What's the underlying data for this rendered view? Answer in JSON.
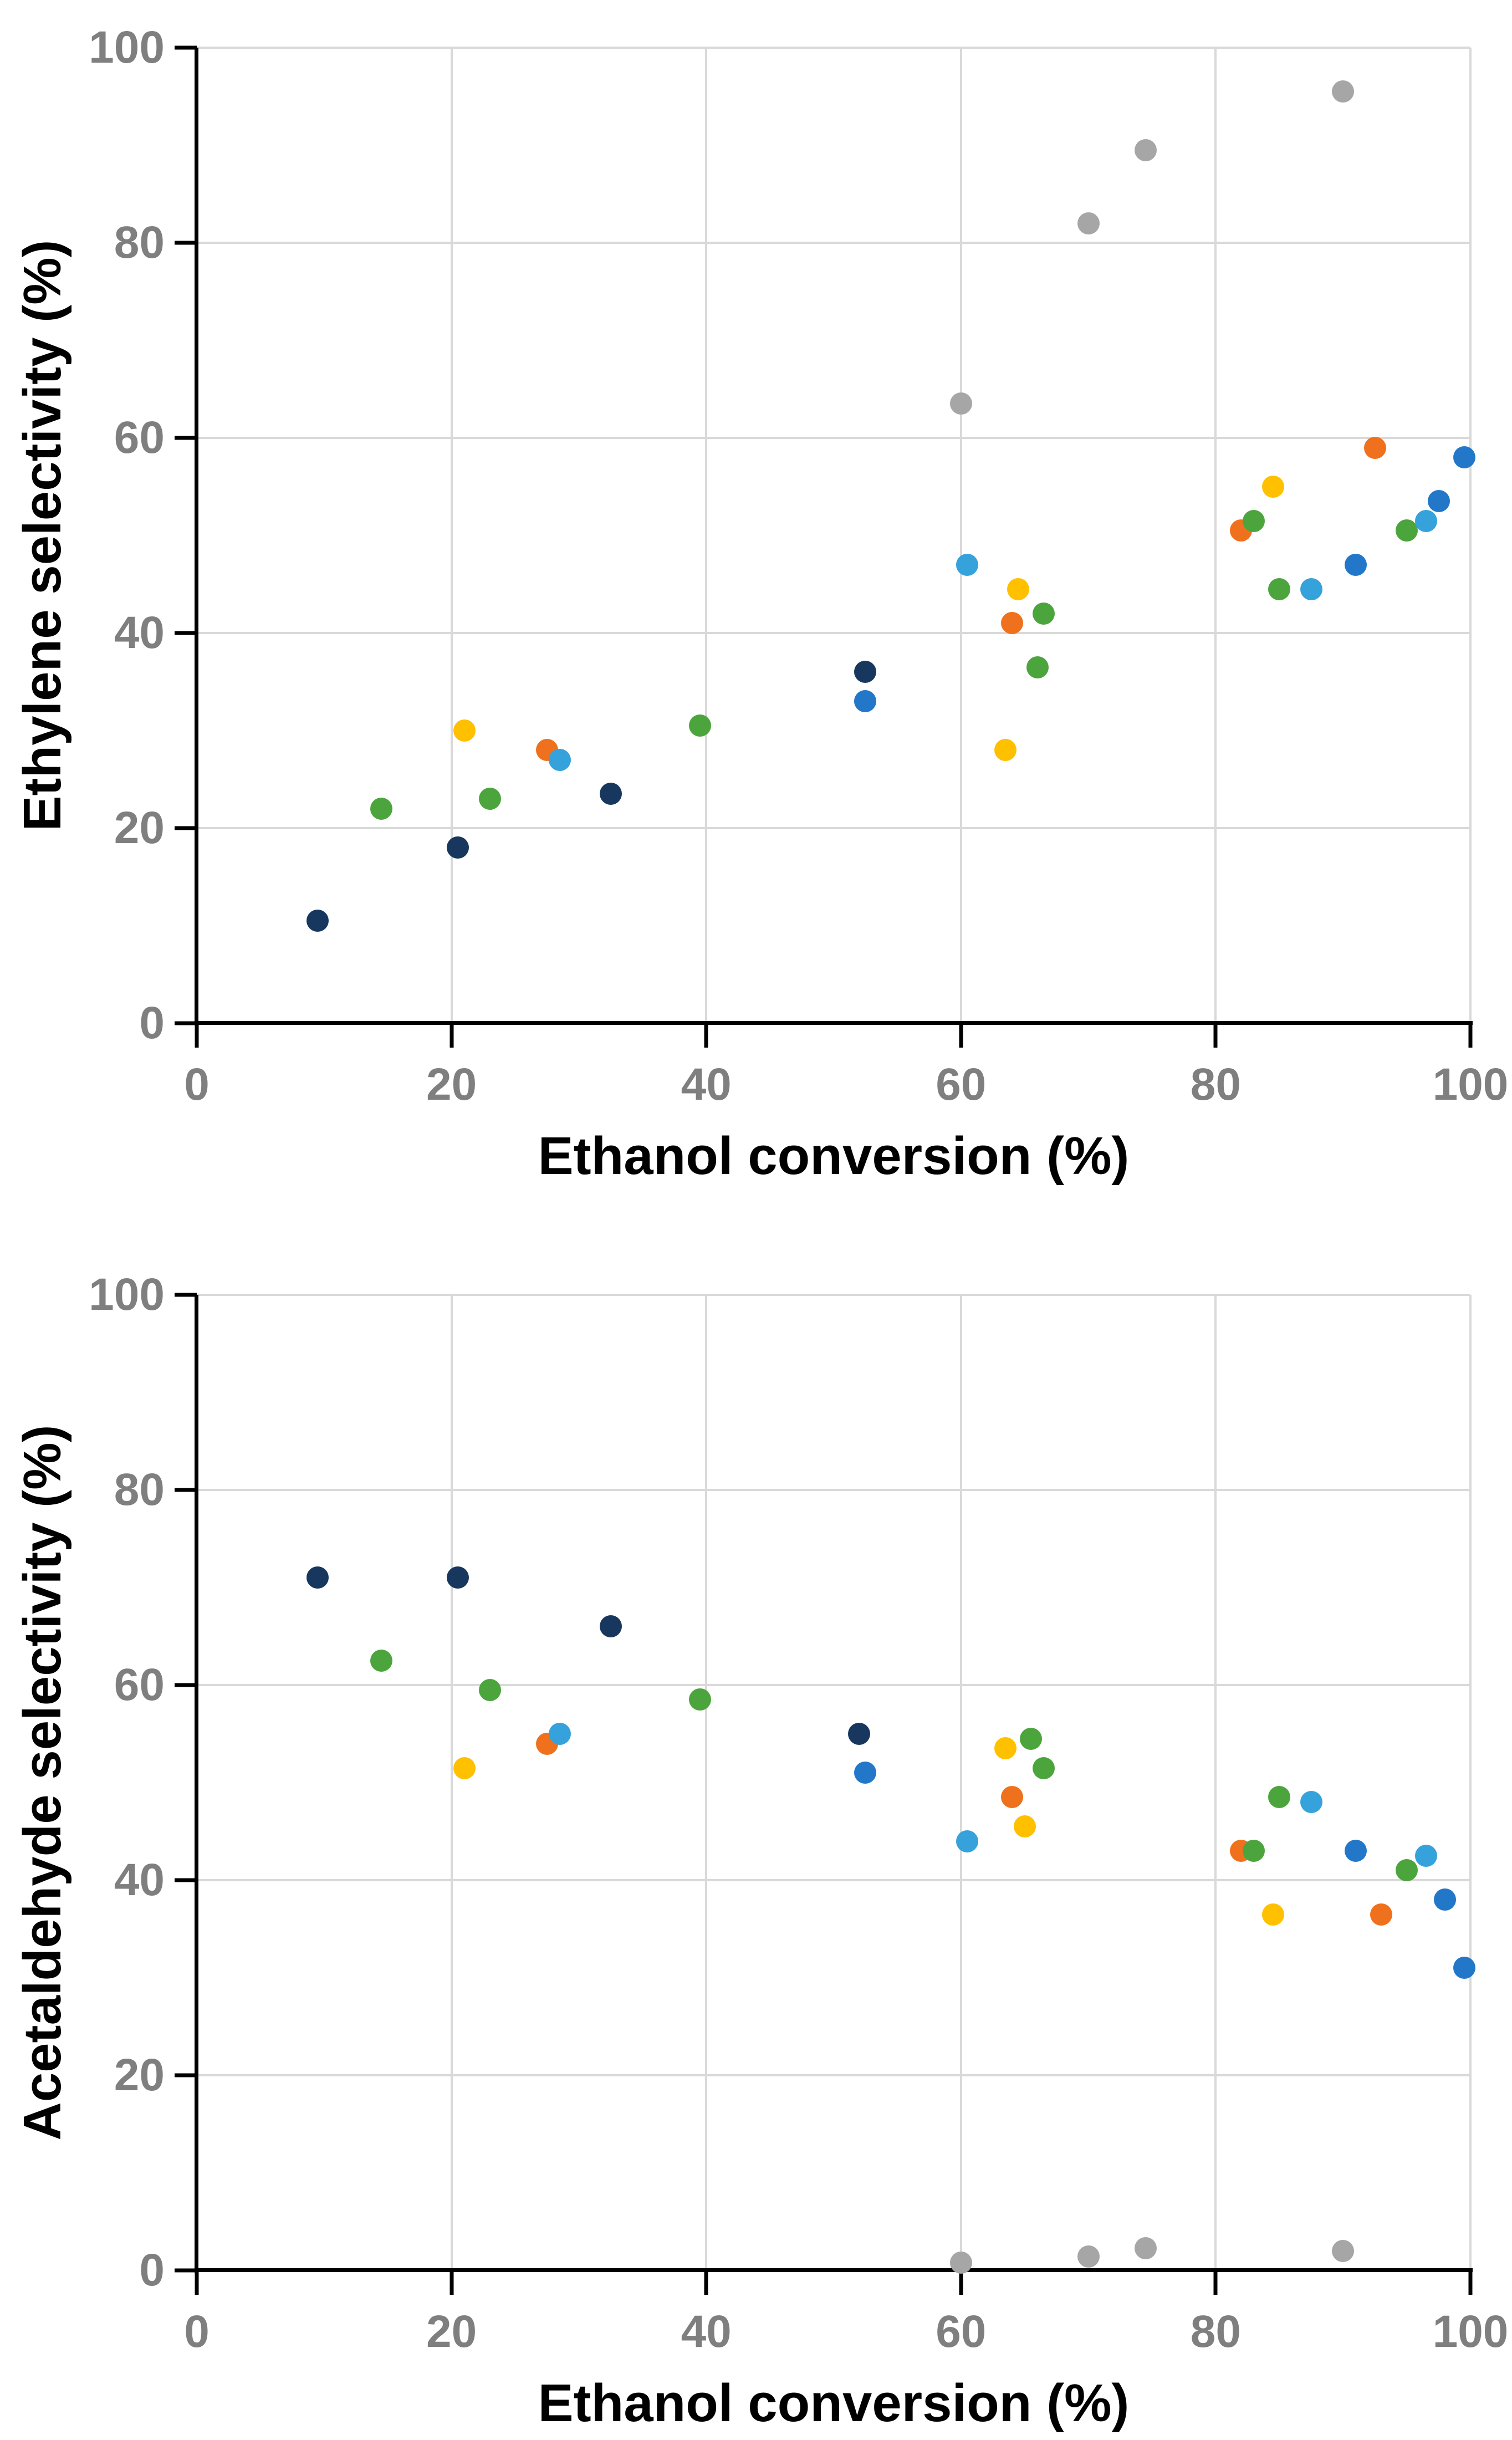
{
  "page": {
    "background": "#FFFFFF"
  },
  "colors": {
    "grid": "#D9D9D9",
    "axis": "#000000",
    "tick_labels": "#7F7F7F"
  },
  "chart_data": [
    {
      "type": "scatter",
      "title": "",
      "xlabel": "Ethanol conversion (%)",
      "ylabel": "Ethylene selectivity (%)",
      "xlim": [
        0,
        100
      ],
      "ylim": [
        0,
        100
      ],
      "xticks": [
        0,
        20,
        40,
        60,
        80,
        100
      ],
      "yticks": [
        0,
        20,
        40,
        60,
        80,
        100
      ],
      "grid": true,
      "legend_position": "none",
      "series": [
        {
          "name": "dark-blue",
          "color": "#17375E",
          "points": [
            [
              9.5,
              10.5
            ],
            [
              20.5,
              18
            ],
            [
              32.5,
              23.5
            ],
            [
              52.5,
              36
            ]
          ]
        },
        {
          "name": "orange",
          "color": "#F0711D",
          "points": [
            [
              27.5,
              28
            ],
            [
              64,
              41
            ],
            [
              82,
              50.5
            ],
            [
              92.5,
              59
            ]
          ]
        },
        {
          "name": "green",
          "color": "#4CA53C",
          "points": [
            [
              14.5,
              22
            ],
            [
              23,
              23
            ],
            [
              39.5,
              30.5
            ],
            [
              66.5,
              42
            ],
            [
              66,
              36.5
            ],
            [
              83,
              51.5
            ],
            [
              85,
              44.5
            ],
            [
              95,
              50.5
            ]
          ]
        },
        {
          "name": "yellow",
          "color": "#FFC000",
          "points": [
            [
              21,
              30
            ],
            [
              63.5,
              28
            ],
            [
              64.5,
              44.5
            ],
            [
              84.5,
              55
            ]
          ]
        },
        {
          "name": "light-blue",
          "color": "#35A2DB",
          "points": [
            [
              28.5,
              27
            ],
            [
              60.5,
              47
            ],
            [
              87.5,
              44.5
            ],
            [
              96.5,
              51.5
            ]
          ]
        },
        {
          "name": "blue",
          "color": "#2277C8",
          "points": [
            [
              52.5,
              33
            ],
            [
              91,
              47
            ],
            [
              97.5,
              53.5
            ],
            [
              99.5,
              58
            ]
          ]
        },
        {
          "name": "gray",
          "color": "#A6A6A6",
          "points": [
            [
              60,
              63.5
            ],
            [
              70,
              82
            ],
            [
              74.5,
              89.5
            ],
            [
              90,
              95.5
            ]
          ]
        }
      ]
    },
    {
      "type": "scatter",
      "title": "",
      "xlabel": "Ethanol conversion (%)",
      "ylabel": "Acetaldehyde selectivity (%)",
      "xlim": [
        0,
        100
      ],
      "ylim": [
        0,
        100
      ],
      "xticks": [
        0,
        20,
        40,
        60,
        80,
        100
      ],
      "yticks": [
        0,
        20,
        40,
        60,
        80,
        100
      ],
      "grid": true,
      "legend_position": "none",
      "series": [
        {
          "name": "dark-blue",
          "color": "#17375E",
          "points": [
            [
              9.5,
              71
            ],
            [
              20.5,
              71
            ],
            [
              32.5,
              66
            ],
            [
              52,
              55
            ]
          ]
        },
        {
          "name": "orange",
          "color": "#F0711D",
          "points": [
            [
              27.5,
              54
            ],
            [
              64,
              48.5
            ],
            [
              82,
              43
            ],
            [
              93,
              36.5
            ]
          ]
        },
        {
          "name": "green",
          "color": "#4CA53C",
          "points": [
            [
              14.5,
              62.5
            ],
            [
              23,
              59.5
            ],
            [
              39.5,
              58.5
            ],
            [
              65.5,
              54.5
            ],
            [
              66.5,
              51.5
            ],
            [
              85,
              48.5
            ],
            [
              83,
              43
            ],
            [
              95,
              41
            ]
          ]
        },
        {
          "name": "yellow",
          "color": "#FFC000",
          "points": [
            [
              21,
              51.5
            ],
            [
              63.5,
              53.5
            ],
            [
              65,
              45.5
            ],
            [
              84.5,
              36.5
            ]
          ]
        },
        {
          "name": "light-blue",
          "color": "#35A2DB",
          "points": [
            [
              28.5,
              55
            ],
            [
              60.5,
              44
            ],
            [
              87.5,
              48
            ],
            [
              96.5,
              42.5
            ]
          ]
        },
        {
          "name": "blue",
          "color": "#2277C8",
          "points": [
            [
              52.5,
              51
            ],
            [
              91,
              43
            ],
            [
              98,
              38
            ],
            [
              99.5,
              31
            ]
          ]
        },
        {
          "name": "gray",
          "color": "#A6A6A6",
          "points": [
            [
              60,
              0.8
            ],
            [
              70,
              1.4
            ],
            [
              74.5,
              2.3
            ],
            [
              90,
              2
            ]
          ]
        }
      ]
    }
  ]
}
